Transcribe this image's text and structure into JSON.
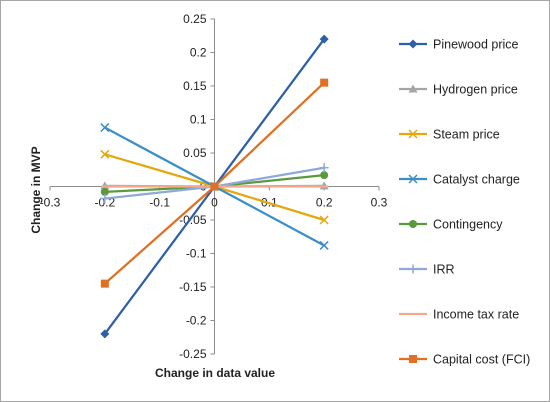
{
  "chart_data": {
    "type": "line",
    "xlabel": "Change in data value",
    "ylabel": "Change in MVP",
    "xlim": [
      -0.3,
      0.3
    ],
    "ylim": [
      -0.25,
      0.25
    ],
    "x_ticks": [
      "-0.3",
      "-0.2",
      "-0.1",
      "0",
      "0.1",
      "0.2",
      "0.3"
    ],
    "y_ticks": [
      "0.25",
      "0.2",
      "0.15",
      "0.1",
      "0.05",
      "0",
      "-0.05",
      "-0.1",
      "-0.15",
      "-0.2",
      "-0.25"
    ],
    "legend_position": "right",
    "grid": false,
    "x": [
      -0.2,
      0,
      0.2
    ],
    "series": [
      {
        "name": "Pinewood price",
        "values": [
          -0.22,
          0,
          0.22
        ],
        "color": "#2e5fa8",
        "marker": "diamond"
      },
      {
        "name": "Hydrogen price",
        "values": [
          0.001,
          0,
          0.001
        ],
        "color": "#a5a5a5",
        "marker": "triangle"
      },
      {
        "name": "Steam price",
        "values": [
          0.048,
          0,
          -0.05
        ],
        "color": "#e4a711",
        "marker": "x"
      },
      {
        "name": "Catalyst charge",
        "values": [
          0.088,
          0,
          -0.088
        ],
        "color": "#3a8fc9",
        "marker": "x"
      },
      {
        "name": "Contingency",
        "values": [
          -0.008,
          0,
          0.017
        ],
        "color": "#5a9a3f",
        "marker": "circle"
      },
      {
        "name": "IRR",
        "values": [
          -0.018,
          0,
          0.028
        ],
        "color": "#8ea9d6",
        "marker": "plus"
      },
      {
        "name": "Income tax rate",
        "values": [
          0.0,
          0,
          0.0
        ],
        "color": "#f4a98c",
        "marker": "dash"
      },
      {
        "name": "Capital cost (FCI)",
        "values": [
          -0.145,
          0,
          0.155
        ],
        "color": "#e07024",
        "marker": "square"
      }
    ]
  }
}
